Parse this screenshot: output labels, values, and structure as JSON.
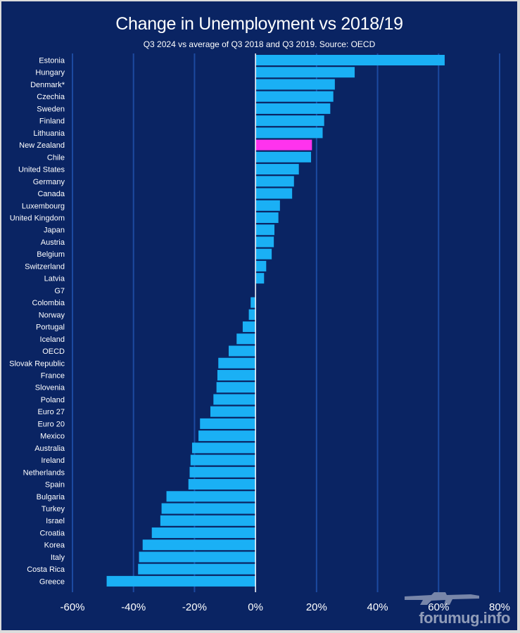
{
  "chart_data": {
    "type": "bar",
    "orientation": "horizontal",
    "title": "Change in Unemployment vs 2018/19",
    "subtitle": "Q3 2024  vs average of Q3 2018  and Q3 2019.  Source: OECD",
    "xlabel": "",
    "ylabel": "",
    "xlim": [
      -60,
      80
    ],
    "ticks": [
      -60,
      -40,
      -20,
      0,
      20,
      40,
      60,
      80
    ],
    "tick_labels": [
      "-60%",
      "-40%",
      "-20%",
      "0%",
      "20%",
      "40%",
      "60%",
      "80%"
    ],
    "grid": "vertical",
    "categories": [
      "Estonia",
      "Hungary",
      "Denmark*",
      "Czechia",
      "Sweden",
      "Finland",
      "Lithuania",
      "New Zealand",
      "Chile",
      "United States",
      "Germany",
      "Canada",
      "Luxembourg",
      "United Kingdom",
      "Japan",
      "Austria",
      "Belgium",
      "Switzerland",
      "Latvia",
      "G7",
      "Colombia",
      "Norway",
      "Portugal",
      "Iceland",
      "OECD",
      "Slovak Republic",
      "France",
      "Slovenia",
      "Poland",
      "Euro 27",
      "Euro 20",
      "Mexico",
      "Australia",
      "Ireland",
      "Netherlands",
      "Spain",
      "Bulgaria",
      "Turkey",
      "Israel",
      "Croatia",
      "Korea",
      "Italy",
      "Costa Rica",
      "Greece"
    ],
    "values": [
      62,
      32.5,
      26,
      25.5,
      24.5,
      22.5,
      22,
      18.5,
      18.2,
      14.2,
      12.6,
      12,
      8,
      7.5,
      6.2,
      6,
      5.3,
      3.5,
      2.8,
      0,
      -1.6,
      -2.2,
      -4.2,
      -6.2,
      -8.8,
      -12.2,
      -12.5,
      -12.8,
      -13.8,
      -14.8,
      -18.2,
      -18.7,
      -20.8,
      -21.3,
      -21.6,
      -22,
      -29.2,
      -30.8,
      -31.2,
      -34,
      -37,
      -38.2,
      -38.5,
      -48.8
    ],
    "highlight_category": "New Zealand",
    "colors": {
      "bar": "#1ab0f5",
      "highlight": "#ff33ee",
      "background": "#0a2463",
      "grid": "#1c4aa0",
      "zero_line": "#ffffff",
      "text": "#ffffff"
    }
  },
  "watermark": "forumug.info"
}
